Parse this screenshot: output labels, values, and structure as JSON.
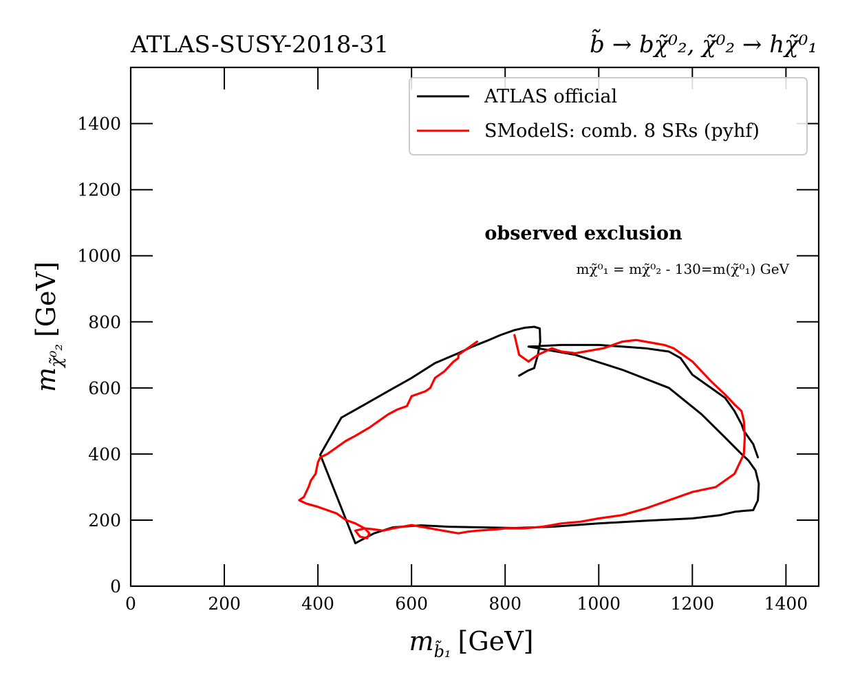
{
  "chart_data": {
    "type": "line",
    "title_left": "ATLAS-SUSY-2018-31",
    "title_right": "b̃ → bχ̃⁰₂, χ̃⁰₂ → hχ̃⁰₁",
    "xlabel": {
      "symbol": "m",
      "sub": "b̃₁",
      "unit": "[GeV]"
    },
    "ylabel": {
      "symbol": "m",
      "sub": "χ̃⁰₂",
      "unit": "[GeV]"
    },
    "xlim": [
      0,
      1470
    ],
    "ylim": [
      0,
      1570
    ],
    "xticks": [
      0,
      200,
      400,
      600,
      800,
      1000,
      1200,
      1400
    ],
    "yticks": [
      0,
      200,
      400,
      600,
      800,
      1000,
      1200,
      1400
    ],
    "xtick_labels": [
      "0",
      "200",
      "400",
      "600",
      "800",
      "1000",
      "1200",
      "1400"
    ],
    "ytick_labels": [
      "0",
      "200",
      "400",
      "600",
      "800",
      "1000",
      "1200",
      "1400"
    ],
    "legend_position": "top-right",
    "annotations": {
      "main": "observed exclusion",
      "sub": "mχ̃⁰₁ = mχ̃⁰₂ - 130=m(χ̃⁰₁) GeV"
    },
    "series": [
      {
        "name": "ATLAS official",
        "color": "#000000",
        "x": [
          830,
          848,
          862,
          870,
          875,
          874,
          862,
          842,
          820,
          790,
          760,
          730,
          700,
          650,
          600,
          550,
          500,
          450,
          405,
          480,
          520,
          560,
          620,
          680,
          750,
          820,
          900,
          1000,
          1100,
          1200,
          1260,
          1290,
          1310,
          1330,
          1340,
          1342,
          1335,
          1320,
          1305,
          1270,
          1220,
          1150,
          1050,
          950,
          850,
          920,
          1000,
          1050,
          1100,
          1150,
          1175,
          1190,
          1200,
          1210,
          1230,
          1250,
          1270,
          1290,
          1305,
          1310,
          1330,
          1340
        ],
        "y": [
          637,
          652,
          660,
          700,
          740,
          780,
          785,
          782,
          775,
          760,
          742,
          725,
          705,
          675,
          630,
          590,
          550,
          510,
          398,
          130,
          160,
          178,
          184,
          180,
          178,
          176,
          180,
          190,
          198,
          205,
          215,
          225,
          228,
          230,
          260,
          310,
          350,
          380,
          400,
          450,
          520,
          600,
          655,
          700,
          725,
          730,
          730,
          725,
          720,
          710,
          690,
          660,
          640,
          630,
          610,
          590,
          570,
          530,
          490,
          470,
          430,
          390
        ]
      },
      {
        "name": "SModelS: comb. 8 SRs (pyhf)",
        "color": "#ff0000",
        "x": [
          740,
          720,
          700,
          700,
          690,
          670,
          650,
          640,
          630,
          600,
          590,
          570,
          550,
          530,
          510,
          480,
          460,
          440,
          420,
          405,
          400,
          395,
          385,
          380,
          370,
          360,
          375,
          400,
          420,
          440,
          460,
          480,
          500,
          510,
          505,
          490,
          480,
          500,
          520,
          540,
          560,
          580,
          600,
          620,
          640,
          660,
          680,
          700,
          720,
          740,
          760,
          780,
          800,
          840,
          880,
          920,
          960,
          1000,
          1050,
          1100,
          1150,
          1200,
          1250,
          1290,
          1310,
          1312,
          1310,
          1305,
          1290,
          1270,
          1240,
          1200,
          1180,
          1160,
          1150,
          1140,
          1120,
          1100,
          1080,
          1050,
          1030,
          1010,
          990,
          970,
          950,
          920,
          900,
          870,
          860,
          850,
          830,
          820
        ],
        "y": [
          740,
          720,
          700,
          690,
          680,
          650,
          630,
          600,
          590,
          575,
          545,
          535,
          520,
          500,
          480,
          455,
          440,
          420,
          400,
          390,
          375,
          340,
          320,
          300,
          270,
          260,
          250,
          240,
          230,
          220,
          200,
          190,
          175,
          160,
          145,
          150,
          168,
          175,
          172,
          168,
          175,
          180,
          185,
          180,
          175,
          170,
          165,
          160,
          165,
          168,
          170,
          172,
          175,
          175,
          180,
          190,
          195,
          205,
          215,
          235,
          260,
          285,
          300,
          340,
          400,
          450,
          500,
          530,
          550,
          580,
          620,
          680,
          700,
          720,
          725,
          730,
          735,
          740,
          745,
          740,
          730,
          720,
          715,
          710,
          705,
          710,
          720,
          700,
          690,
          680,
          700,
          760
        ]
      }
    ]
  }
}
